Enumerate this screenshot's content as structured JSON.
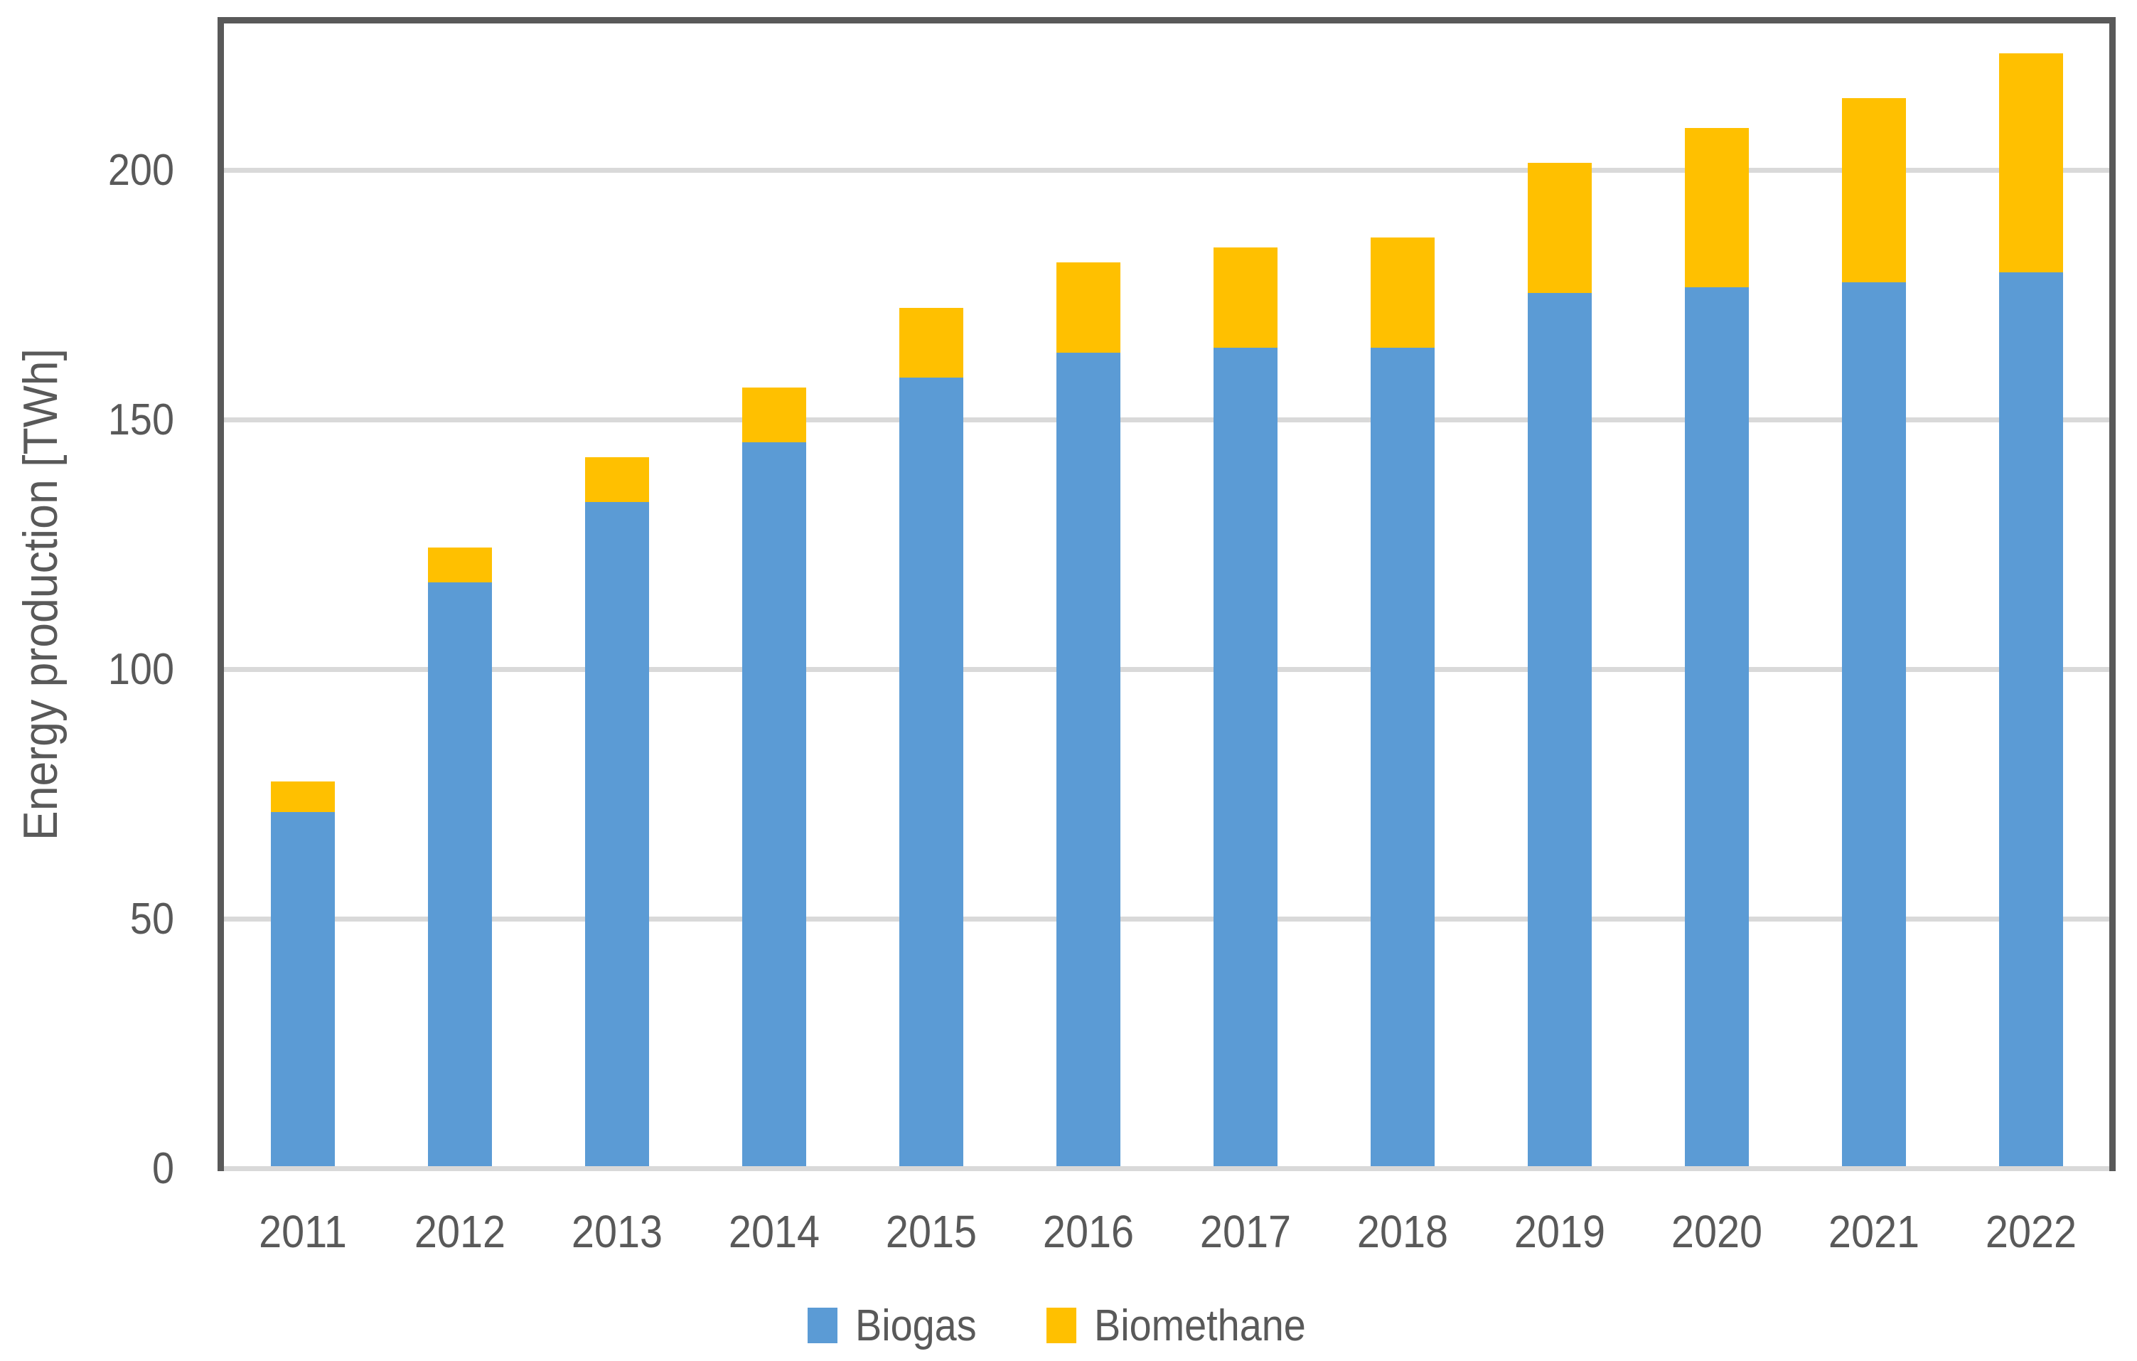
{
  "chart_data": {
    "type": "bar",
    "stacked": true,
    "title": "",
    "xlabel": "",
    "ylabel": "Energy production [TWh]",
    "categories": [
      "2011",
      "2012",
      "2013",
      "2014",
      "2015",
      "2016",
      "2017",
      "2018",
      "2019",
      "2020",
      "2021",
      "2022"
    ],
    "series": [
      {
        "name": "Biogas",
        "color": "#5B9BD5",
        "values": [
          71,
          117,
          133,
          145,
          158,
          163,
          164,
          164,
          175,
          176,
          177,
          179
        ]
      },
      {
        "name": "Biomethane",
        "color": "#FFC000",
        "values": [
          6,
          7,
          9,
          11,
          14,
          18,
          20,
          22,
          26,
          32,
          37,
          44
        ]
      }
    ],
    "y_ticks": [
      0,
      50,
      100,
      150,
      200
    ],
    "y_tick_labels": [
      "0",
      "50",
      "100",
      "150",
      "200"
    ],
    "ylim": [
      0,
      229
    ],
    "grid": "horizontal",
    "legend_position": "bottom",
    "legend": [
      "Biogas",
      "Biomethane"
    ]
  },
  "colors": {
    "background": "#FFFFFF",
    "plot_border": "#595959",
    "gridline": "#D9D9D9",
    "axis_text": "#595959",
    "biogas": "#5B9BD5",
    "biomethane": "#FFC000"
  }
}
